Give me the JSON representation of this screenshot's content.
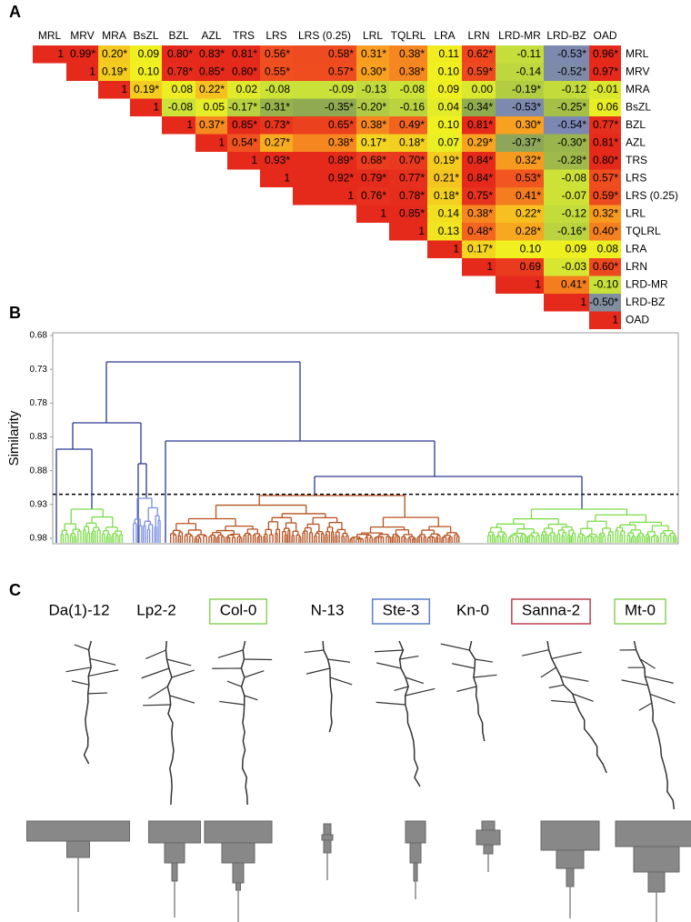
{
  "panel_a": {
    "label": "A",
    "columns": [
      "MRL",
      "MRV",
      "MRA",
      "BsZL",
      "BZL",
      "AZL",
      "TRS",
      "LRS",
      "LRS (0.25)",
      "LRL",
      "TQLRL",
      "LRA",
      "LRN",
      "LRD-MR",
      "LRD-BZ",
      "OAD"
    ],
    "rows": [
      {
        "label": "MRL",
        "cells": [
          "1",
          "0.99*",
          "0.20*",
          "0.09",
          "0.80*",
          "0.83*",
          "0.81*",
          "0.56*",
          "0.58*",
          "0.31*",
          "0.38*",
          "0.11",
          "0.62*",
          "-0.11",
          "-0.53*",
          "0.96*"
        ]
      },
      {
        "label": "MRV",
        "cells": [
          "1",
          "0.19*",
          "0.10",
          "0.78*",
          "0.85*",
          "0.80*",
          "0.55*",
          "0.57*",
          "0.30*",
          "0.38*",
          "0.10",
          "0.59*",
          "-0.14",
          "-0.52*",
          "0.97*"
        ]
      },
      {
        "label": "MRA",
        "cells": [
          "1",
          "0.19*",
          "0.08",
          "0.22*",
          "0.02",
          "-0.08",
          "-0.09",
          "-0.13",
          "-0.08",
          "0.09",
          "0.00",
          "-0.19*",
          "-0.12",
          "-0.01"
        ]
      },
      {
        "label": "BsZL",
        "cells": [
          "1",
          "-0.08",
          "0.05",
          "-0.17*",
          "-0.31*",
          "-0.35*",
          "-0.20*",
          "-0.16",
          "0.04",
          "-0.34*",
          "-0.53*",
          "-0.25*",
          "0.06"
        ]
      },
      {
        "label": "BZL",
        "cells": [
          "1",
          "0.37*",
          "0.85*",
          "0.73*",
          "0.65*",
          "0.38*",
          "0.49*",
          "0.10",
          "0.81*",
          "0.30*",
          "-0.54*",
          "0.77*"
        ]
      },
      {
        "label": "AZL",
        "cells": [
          "1",
          "0.54*",
          "0.27*",
          "0.38*",
          "0.17*",
          "0.18*",
          "0.07",
          "0.29*",
          "-0.37*",
          "-0.30*",
          "0.81*"
        ]
      },
      {
        "label": "TRS",
        "cells": [
          "1",
          "0.93*",
          "0.89*",
          "0.68*",
          "0.70*",
          "0.19*",
          "0.84*",
          "0.32*",
          "-0.28*",
          "0.80*"
        ]
      },
      {
        "label": "LRS",
        "cells": [
          "1",
          "0.92*",
          "0.79*",
          "0.77*",
          "0.21*",
          "0.84*",
          "0.53*",
          "-0.08",
          "0.57*"
        ]
      },
      {
        "label": "LRS (0.25)",
        "cells": [
          "1",
          "0.76*",
          "0.78*",
          "0.18*",
          "0.75*",
          "0.41*",
          "-0.07",
          "0.59*"
        ]
      },
      {
        "label": "LRL",
        "cells": [
          "1",
          "0.85*",
          "0.14",
          "0.38*",
          "0.22*",
          "-0.12",
          "0.32*"
        ]
      },
      {
        "label": "TQLRL",
        "cells": [
          "1",
          "0.13",
          "0.48*",
          "0.28*",
          "-0.16*",
          "0.40*"
        ]
      },
      {
        "label": "LRA",
        "cells": [
          "1",
          "0.17*",
          "0.10",
          "0.09",
          "0.08"
        ]
      },
      {
        "label": "LRN",
        "cells": [
          "1",
          "0.69",
          "-0.03",
          "0.60*"
        ]
      },
      {
        "label": "LRD-MR",
        "cells": [
          "1",
          "0.41*",
          "-0.10"
        ]
      },
      {
        "label": "LRD-BZ",
        "cells": [
          "1",
          "-0.50*"
        ]
      },
      {
        "label": "OAD",
        "cells": [
          "1"
        ]
      }
    ]
  },
  "panel_b": {
    "label": "B",
    "y_label": "Similarity",
    "ylim": [
      0.68,
      0.98
    ],
    "yticks": [
      0.68,
      0.73,
      0.78,
      0.83,
      0.88,
      0.93,
      0.98
    ],
    "cutoff": 0.915
  },
  "panel_c": {
    "label": "C",
    "accessions": [
      {
        "name": "Da(1)-12"
      },
      {
        "name": "Lp2-2"
      },
      {
        "name": "Col-0",
        "box_color": "#8ed35a"
      },
      {
        "name": "N-13"
      },
      {
        "name": "Ste-3",
        "box_color": "#5a7fc8"
      },
      {
        "name": "Kn-0"
      },
      {
        "name": "Sanna-2",
        "box_color": "#b8424f"
      },
      {
        "name": "Mt-0",
        "box_color": "#8ed35a"
      }
    ]
  }
}
